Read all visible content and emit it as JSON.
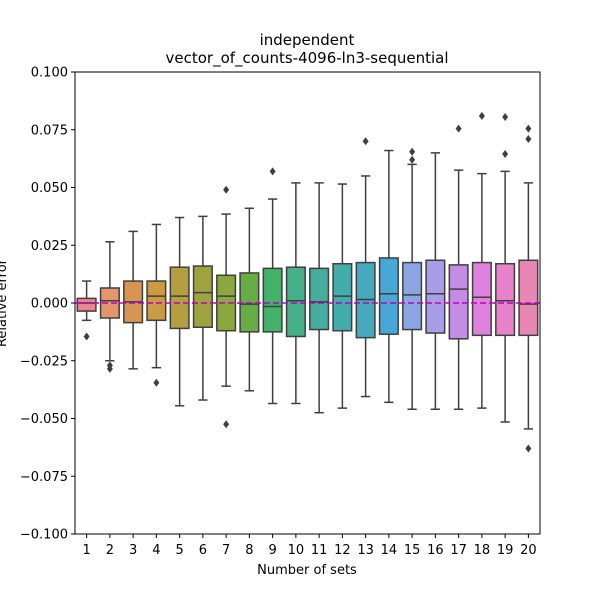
{
  "chart_data": {
    "type": "box",
    "title_lines": [
      "independent",
      "vector_of_counts-4096-ln3-sequential"
    ],
    "xlabel": "Number of sets",
    "ylabel": "Relative error",
    "ylim": [
      -0.1,
      0.1
    ],
    "yticks": [
      -0.1,
      -0.075,
      -0.05,
      -0.025,
      0.0,
      0.025,
      0.05,
      0.075,
      0.1
    ],
    "ytick_labels": [
      "−0.100",
      "−0.075",
      "−0.050",
      "−0.025",
      "0.000",
      "0.025",
      "0.050",
      "0.075",
      "0.100"
    ],
    "reference_line": {
      "y": 0.0,
      "color": "#bf00bf",
      "style": "dashed"
    },
    "grid": false,
    "categories": [
      "1",
      "2",
      "3",
      "4",
      "5",
      "6",
      "7",
      "8",
      "9",
      "10",
      "11",
      "12",
      "13",
      "14",
      "15",
      "16",
      "17",
      "18",
      "19",
      "20"
    ],
    "boxes": [
      {
        "category": "1",
        "color": "#e88692",
        "q1": -0.0035,
        "median": 0.0,
        "q3": 0.002,
        "whislo": -0.0075,
        "whishi": 0.0095,
        "fliers": [
          -0.0145
        ]
      },
      {
        "category": "2",
        "color": "#e3956d",
        "q1": -0.0065,
        "median": 0.001,
        "q3": 0.0065,
        "whislo": -0.025,
        "whishi": 0.0265,
        "fliers": [
          -0.027,
          -0.0285
        ]
      },
      {
        "category": "3",
        "color": "#d69552",
        "q1": -0.0085,
        "median": 0.0005,
        "q3": 0.0095,
        "whislo": -0.0285,
        "whishi": 0.031,
        "fliers": []
      },
      {
        "category": "4",
        "color": "#c99b42",
        "q1": -0.0075,
        "median": 0.003,
        "q3": 0.0095,
        "whislo": -0.028,
        "whishi": 0.034,
        "fliers": [
          -0.0345
        ]
      },
      {
        "category": "5",
        "color": "#b39f40",
        "q1": -0.011,
        "median": 0.003,
        "q3": 0.0155,
        "whislo": -0.0445,
        "whishi": 0.037,
        "fliers": []
      },
      {
        "category": "6",
        "color": "#9fa33f",
        "q1": -0.0105,
        "median": 0.0045,
        "q3": 0.016,
        "whislo": -0.042,
        "whishi": 0.0375,
        "fliers": []
      },
      {
        "category": "7",
        "color": "#8ba73f",
        "q1": -0.012,
        "median": 0.003,
        "q3": 0.012,
        "whislo": -0.036,
        "whishi": 0.0385,
        "fliers": [
          0.049,
          -0.0525
        ]
      },
      {
        "category": "8",
        "color": "#67ad45",
        "q1": -0.0125,
        "median": -0.0005,
        "q3": 0.013,
        "whislo": -0.038,
        "whishi": 0.041,
        "fliers": []
      },
      {
        "category": "9",
        "color": "#45b06a",
        "q1": -0.0125,
        "median": -0.0015,
        "q3": 0.015,
        "whislo": -0.0435,
        "whishi": 0.045,
        "fliers": [
          0.057
        ]
      },
      {
        "category": "10",
        "color": "#45b08a",
        "q1": -0.0145,
        "median": 0.001,
        "q3": 0.0155,
        "whislo": -0.0435,
        "whishi": 0.052,
        "fliers": []
      },
      {
        "category": "11",
        "color": "#44ad9d",
        "q1": -0.0115,
        "median": 0.0005,
        "q3": 0.015,
        "whislo": -0.0475,
        "whishi": 0.052,
        "fliers": []
      },
      {
        "category": "12",
        "color": "#45acac",
        "q1": -0.012,
        "median": 0.003,
        "q3": 0.017,
        "whislo": -0.0455,
        "whishi": 0.0515,
        "fliers": []
      },
      {
        "category": "13",
        "color": "#46a9bd",
        "q1": -0.015,
        "median": 0.0015,
        "q3": 0.0175,
        "whislo": -0.0405,
        "whishi": 0.055,
        "fliers": [
          0.07
        ]
      },
      {
        "category": "14",
        "color": "#48a7d5",
        "q1": -0.0135,
        "median": 0.004,
        "q3": 0.0195,
        "whislo": -0.043,
        "whishi": 0.066,
        "fliers": []
      },
      {
        "category": "15",
        "color": "#8ba5e3",
        "q1": -0.0115,
        "median": 0.0035,
        "q3": 0.0175,
        "whislo": -0.046,
        "whishi": 0.06,
        "fliers": [
          0.0655,
          0.062
        ]
      },
      {
        "category": "16",
        "color": "#a99ce8",
        "q1": -0.013,
        "median": 0.004,
        "q3": 0.0185,
        "whislo": -0.046,
        "whishi": 0.065,
        "fliers": []
      },
      {
        "category": "17",
        "color": "#c48de5",
        "q1": -0.0155,
        "median": 0.006,
        "q3": 0.0165,
        "whislo": -0.046,
        "whishi": 0.0575,
        "fliers": [
          0.0755
        ]
      },
      {
        "category": "18",
        "color": "#e081dd",
        "q1": -0.014,
        "median": 0.0025,
        "q3": 0.0175,
        "whislo": -0.0455,
        "whishi": 0.056,
        "fliers": [
          0.081
        ]
      },
      {
        "category": "19",
        "color": "#e683ca",
        "q1": -0.014,
        "median": 0.001,
        "q3": 0.017,
        "whislo": -0.0515,
        "whishi": 0.057,
        "fliers": [
          0.0805,
          0.0645
        ]
      },
      {
        "category": "20",
        "color": "#e887b3",
        "q1": -0.014,
        "median": -0.0005,
        "q3": 0.0185,
        "whislo": -0.0545,
        "whishi": 0.052,
        "fliers": [
          0.0755,
          0.071,
          -0.063
        ]
      }
    ]
  }
}
